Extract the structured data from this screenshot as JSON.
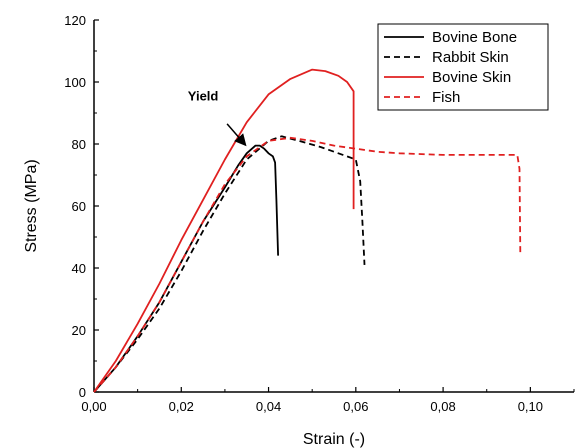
{
  "chart_data": {
    "type": "line",
    "title": "",
    "xlabel": "Strain (-)",
    "ylabel": "Stress (MPa)",
    "xlim": [
      0,
      0.11
    ],
    "ylim": [
      0,
      120
    ],
    "x_ticks": [
      0,
      0.02,
      0.04,
      0.06,
      0.08,
      0.1
    ],
    "x_tick_labels": [
      "0,00",
      "0,02",
      "0,04",
      "0,06",
      "0,08",
      "0,10"
    ],
    "y_ticks": [
      0,
      20,
      40,
      60,
      80,
      100,
      120
    ],
    "y_tick_labels": [
      "0",
      "20",
      "40",
      "60",
      "80",
      "100",
      "120"
    ],
    "grid": false,
    "legend_position": "top-right",
    "series": [
      {
        "name": "Bovine Bone",
        "color": "#000000",
        "dash": "solid",
        "points": [
          [
            0,
            0
          ],
          [
            0.005,
            8
          ],
          [
            0.01,
            18
          ],
          [
            0.015,
            29
          ],
          [
            0.02,
            42
          ],
          [
            0.025,
            55
          ],
          [
            0.03,
            66
          ],
          [
            0.033,
            73
          ],
          [
            0.035,
            77
          ],
          [
            0.037,
            79.5
          ],
          [
            0.038,
            79.5
          ],
          [
            0.039,
            78.5
          ],
          [
            0.04,
            77
          ],
          [
            0.041,
            76
          ],
          [
            0.0415,
            74
          ],
          [
            0.0418,
            62
          ],
          [
            0.0422,
            44
          ]
        ]
      },
      {
        "name": "Rabbit Skin",
        "color": "#000000",
        "dash": "dashed",
        "points": [
          [
            0,
            0
          ],
          [
            0.005,
            8
          ],
          [
            0.01,
            17
          ],
          [
            0.015,
            27
          ],
          [
            0.02,
            39
          ],
          [
            0.025,
            52
          ],
          [
            0.03,
            64
          ],
          [
            0.035,
            75
          ],
          [
            0.04,
            81
          ],
          [
            0.043,
            82.5
          ],
          [
            0.047,
            81
          ],
          [
            0.052,
            79
          ],
          [
            0.056,
            77
          ],
          [
            0.06,
            75
          ],
          [
            0.061,
            68
          ],
          [
            0.0615,
            55
          ],
          [
            0.062,
            41
          ]
        ]
      },
      {
        "name": "Bovine Skin",
        "color": "#e02020",
        "dash": "solid",
        "points": [
          [
            0,
            0
          ],
          [
            0.005,
            10
          ],
          [
            0.01,
            22
          ],
          [
            0.015,
            35
          ],
          [
            0.02,
            49
          ],
          [
            0.025,
            62
          ],
          [
            0.03,
            75
          ],
          [
            0.035,
            87
          ],
          [
            0.04,
            96
          ],
          [
            0.045,
            101
          ],
          [
            0.05,
            104
          ],
          [
            0.053,
            103.5
          ],
          [
            0.056,
            102
          ],
          [
            0.058,
            100
          ],
          [
            0.0595,
            97
          ],
          [
            0.0595,
            59
          ]
        ]
      },
      {
        "name": "Fish",
        "color": "#e02020",
        "dash": "dashed",
        "points": [
          [
            0,
            0
          ],
          [
            0.005,
            8
          ],
          [
            0.01,
            18
          ],
          [
            0.015,
            29
          ],
          [
            0.02,
            42
          ],
          [
            0.025,
            55
          ],
          [
            0.03,
            67
          ],
          [
            0.035,
            76
          ],
          [
            0.04,
            81
          ],
          [
            0.045,
            82
          ],
          [
            0.05,
            81
          ],
          [
            0.055,
            79.5
          ],
          [
            0.06,
            78.5
          ],
          [
            0.065,
            77.5
          ],
          [
            0.07,
            77
          ],
          [
            0.08,
            76.5
          ],
          [
            0.09,
            76.5
          ],
          [
            0.097,
            76.5
          ],
          [
            0.0975,
            72
          ],
          [
            0.0977,
            45
          ]
        ]
      }
    ],
    "annotations": [
      {
        "text": "Yield",
        "label_at": [
          0.025,
          94
        ],
        "arrow_from": [
          0.0305,
          86.5
        ],
        "arrow_to": [
          0.0345,
          80
        ]
      }
    ]
  }
}
